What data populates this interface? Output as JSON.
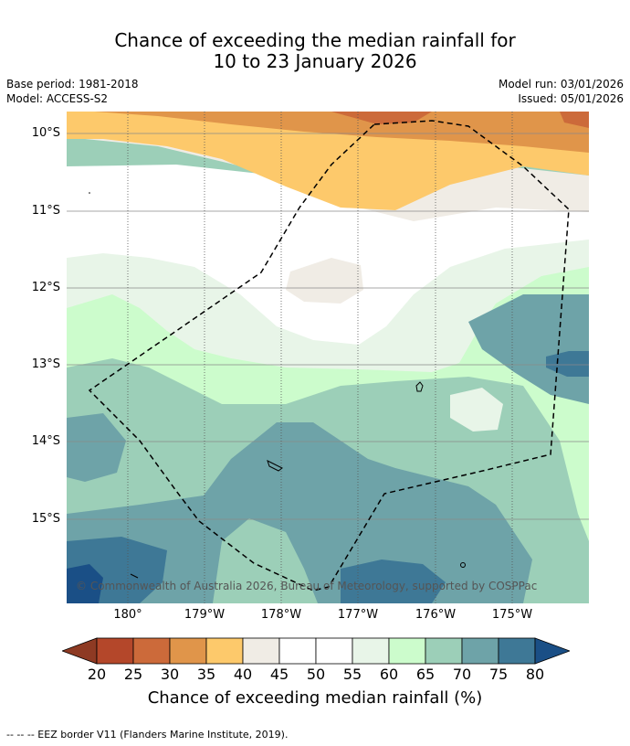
{
  "title": {
    "line1": "Chance of exceeding the median rainfall for",
    "line2": "10 to 23 January 2026"
  },
  "meta": {
    "base_period": "Base period: 1981-2018",
    "model": "Model: ACCESS-S2",
    "model_run": "Model run: 03/01/2026",
    "issued": "Issued: 05/01/2026"
  },
  "map": {
    "lat_labels": [
      "10°S",
      "11°S",
      "12°S",
      "13°S",
      "14°S",
      "15°S"
    ],
    "lon_labels": [
      "180°",
      "179°W",
      "178°W",
      "177°W",
      "176°W",
      "175°W"
    ],
    "copyright": "© Commonwealth of Australia 2026, Bureau of Meteorology, supported by COSPPac"
  },
  "colorbar": {
    "ticks": [
      "20",
      "25",
      "30",
      "35",
      "40",
      "45",
      "50",
      "55",
      "60",
      "65",
      "70",
      "75",
      "80"
    ],
    "colors": [
      "#8e3a23",
      "#b4472a",
      "#cc6a3a",
      "#e0954a",
      "#fdc96b",
      "#f0ece5",
      "#ffffff",
      "#ffffff",
      "#e8f5e8",
      "#ccfccc",
      "#9ccfb8",
      "#6ea3a8",
      "#3e7896",
      "#1a4f86"
    ],
    "label": "Chance of exceeding median rainfall (%)"
  },
  "footer": {
    "note": "--  --  -- EEZ border V11 (Flanders Marine Institute, 2019)."
  }
}
